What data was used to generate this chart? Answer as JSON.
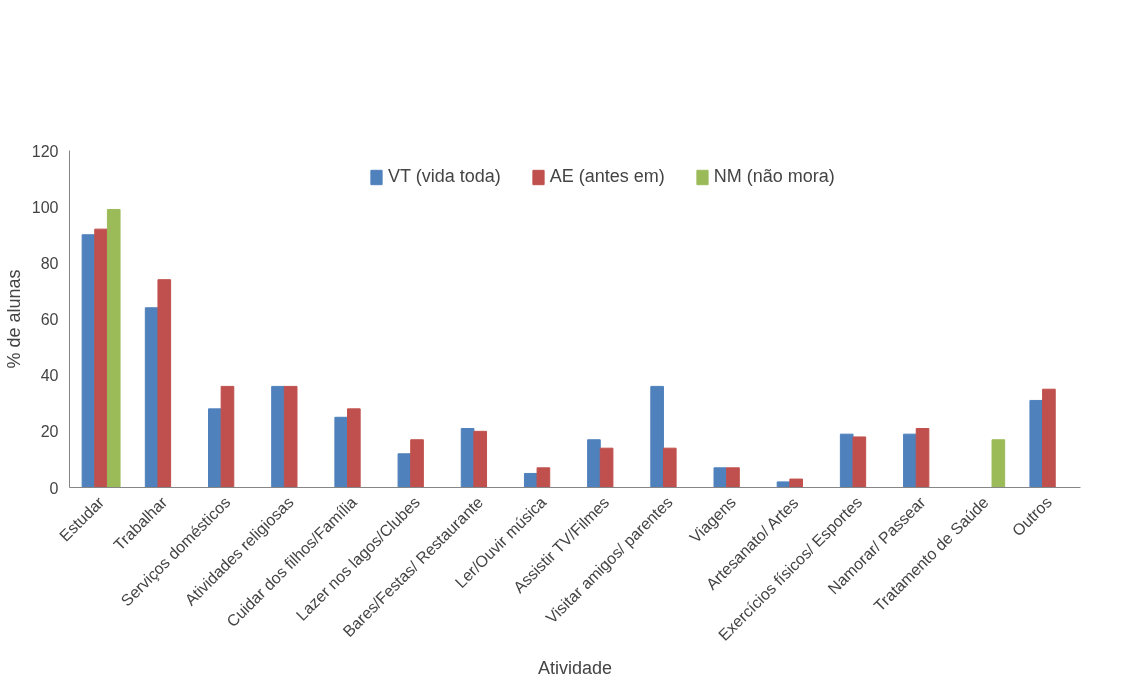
{
  "chart_data": {
    "type": "bar",
    "xlabel": "Atividade",
    "ylabel": "% de alunas",
    "categories": [
      "Estudar",
      "Trabalhar",
      "Serviços domésticos",
      "Atividades religiosas",
      "Cuidar dos filhos/Família",
      "Lazer nos lagos/Clubes",
      "Bares/Festas/ Restaurante",
      "Ler/Ouvir música",
      "Assistir TV/Filmes",
      "Visitar amigos/ parentes",
      "Viagens",
      "Artesanato/ Artes",
      "Exercícios físicos/ Esportes",
      "Namorar/ Passear",
      "Tratamento de Saúde",
      "Outros"
    ],
    "series": [
      {
        "name": "VT (vida toda)",
        "color": "#4f81bd",
        "values": [
          90,
          64,
          28,
          36,
          25,
          12,
          21,
          5,
          17,
          36,
          7,
          2,
          19,
          19,
          null,
          31
        ]
      },
      {
        "name": "AE (antes em)",
        "color": "#c0504d",
        "values": [
          92,
          74,
          36,
          36,
          28,
          17,
          20,
          7,
          14,
          14,
          7,
          3,
          18,
          21,
          null,
          35
        ]
      },
      {
        "name": "NM (não mora)",
        "color": "#9bbb59",
        "values": [
          99,
          null,
          null,
          null,
          null,
          null,
          null,
          null,
          null,
          null,
          null,
          null,
          null,
          null,
          17,
          null
        ]
      }
    ],
    "ylim": [
      0,
      120
    ],
    "yticks": [
      0,
      20,
      40,
      60,
      80,
      100,
      120
    ],
    "grid": false,
    "legend": "top"
  }
}
